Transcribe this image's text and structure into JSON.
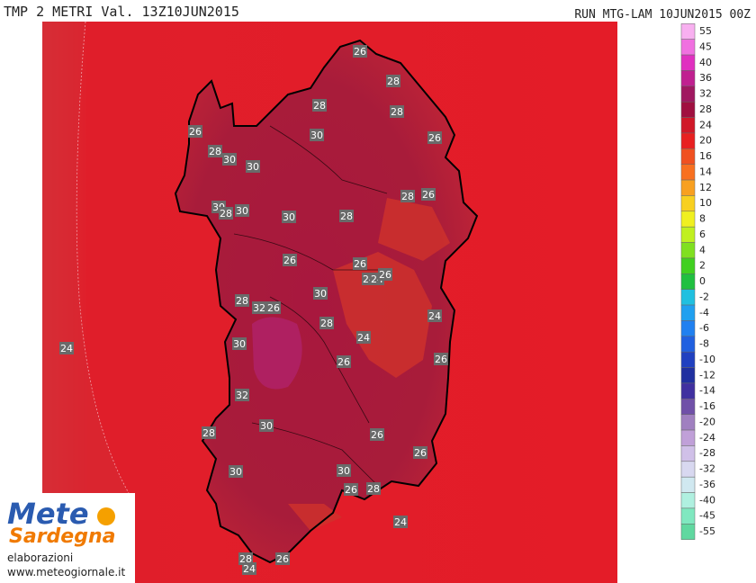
{
  "header": {
    "title": "TMP 2 METRI Val. 13Z10JUN2015",
    "run": "RUN MTG-LAM 10JUN2015 00Z"
  },
  "map_labels": [
    "26",
    "28",
    "28",
    "28",
    "26",
    "30",
    "26",
    "28",
    "30",
    "30",
    "28",
    "26",
    "30",
    "28",
    "30",
    "30",
    "28",
    "26",
    "26",
    "24",
    "24",
    "26",
    "30",
    "28",
    "32",
    "26",
    "28",
    "24",
    "24",
    "30",
    "26",
    "26",
    "24",
    "32",
    "30",
    "26",
    "28",
    "26",
    "30",
    "30",
    "26",
    "28",
    "24",
    "28",
    "24",
    "26"
  ],
  "legend": {
    "labels": [
      55,
      45,
      40,
      36,
      32,
      28,
      24,
      20,
      16,
      14,
      12,
      10,
      8,
      6,
      4,
      2,
      0,
      -2,
      -4,
      -6,
      -8,
      -10,
      -12,
      -14,
      -16,
      -20,
      -24,
      -28,
      -32,
      -36,
      -40,
      -45,
      -55
    ],
    "colors": [
      "#f8b0f0",
      "#f070e0",
      "#e030c0",
      "#c02090",
      "#a01860",
      "#a01040",
      "#d01828",
      "#e82020",
      "#f05020",
      "#f87020",
      "#f8a020",
      "#f8d020",
      "#f0f020",
      "#c0f020",
      "#80e020",
      "#40d020",
      "#20c040",
      "#20c0e0",
      "#20a0f0",
      "#2080f0",
      "#2060e0",
      "#2040c0",
      "#2030a0",
      "#4030a0",
      "#7050a8",
      "#a080c0",
      "#c0a0d8",
      "#d0c0e8",
      "#d8d8f0",
      "#d0e8f0",
      "#b0f0e0",
      "#80e8c0",
      "#60d8a0"
    ]
  },
  "logo": {
    "name": "Mete",
    "region": "Sardegna",
    "credit": "elaborazioni",
    "url": "www.meteogiornale.it"
  }
}
